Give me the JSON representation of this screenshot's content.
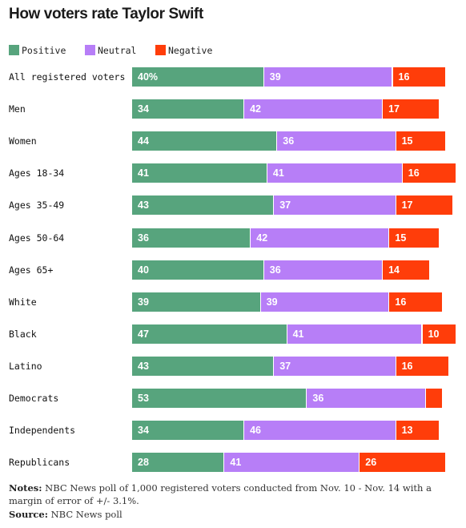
{
  "chart_data": {
    "type": "bar",
    "orientation": "horizontal",
    "stacked": true,
    "title": "How voters rate Taylor Swift",
    "legend_position": "top-left",
    "colors": {
      "Positive": "#57a47d",
      "Neutral": "#b77ef7",
      "Negative": "#ff3d0a"
    },
    "categories": [
      "All registered voters",
      "Men",
      "Women",
      "Ages 18-34",
      "Ages 35-49",
      "Ages 50-64",
      "Ages 65+",
      "White",
      "Black",
      "Latino",
      "Democrats",
      "Independents",
      "Republicans"
    ],
    "series": [
      {
        "name": "Positive",
        "values": [
          40,
          34,
          44,
          41,
          43,
          36,
          40,
          39,
          47,
          43,
          53,
          34,
          28
        ]
      },
      {
        "name": "Neutral",
        "values": [
          39,
          42,
          36,
          41,
          37,
          42,
          36,
          39,
          41,
          37,
          36,
          46,
          41
        ]
      },
      {
        "name": "Negative",
        "values": [
          16,
          17,
          15,
          16,
          17,
          15,
          14,
          16,
          10,
          16,
          5,
          13,
          26
        ]
      }
    ],
    "value_labels": [
      [
        "40%",
        "39",
        "16"
      ],
      [
        "34",
        "42",
        "17"
      ],
      [
        "44",
        "36",
        "15"
      ],
      [
        "41",
        "41",
        "16"
      ],
      [
        "43",
        "37",
        "17"
      ],
      [
        "36",
        "42",
        "15"
      ],
      [
        "40",
        "36",
        "14"
      ],
      [
        "39",
        "39",
        "16"
      ],
      [
        "47",
        "41",
        "10"
      ],
      [
        "43",
        "37",
        "16"
      ],
      [
        "53",
        "36",
        ""
      ],
      [
        "34",
        "46",
        "13"
      ],
      [
        "28",
        "41",
        "26"
      ]
    ],
    "xlim": [
      0,
      100
    ]
  },
  "notes_label": "Notes:",
  "notes_text": " NBC News poll of 1,000 registered voters conducted from Nov. 10 - Nov. 14 with a margin of error of +/- 3.1%.",
  "source_label": "Source:",
  "source_text": " NBC News poll"
}
